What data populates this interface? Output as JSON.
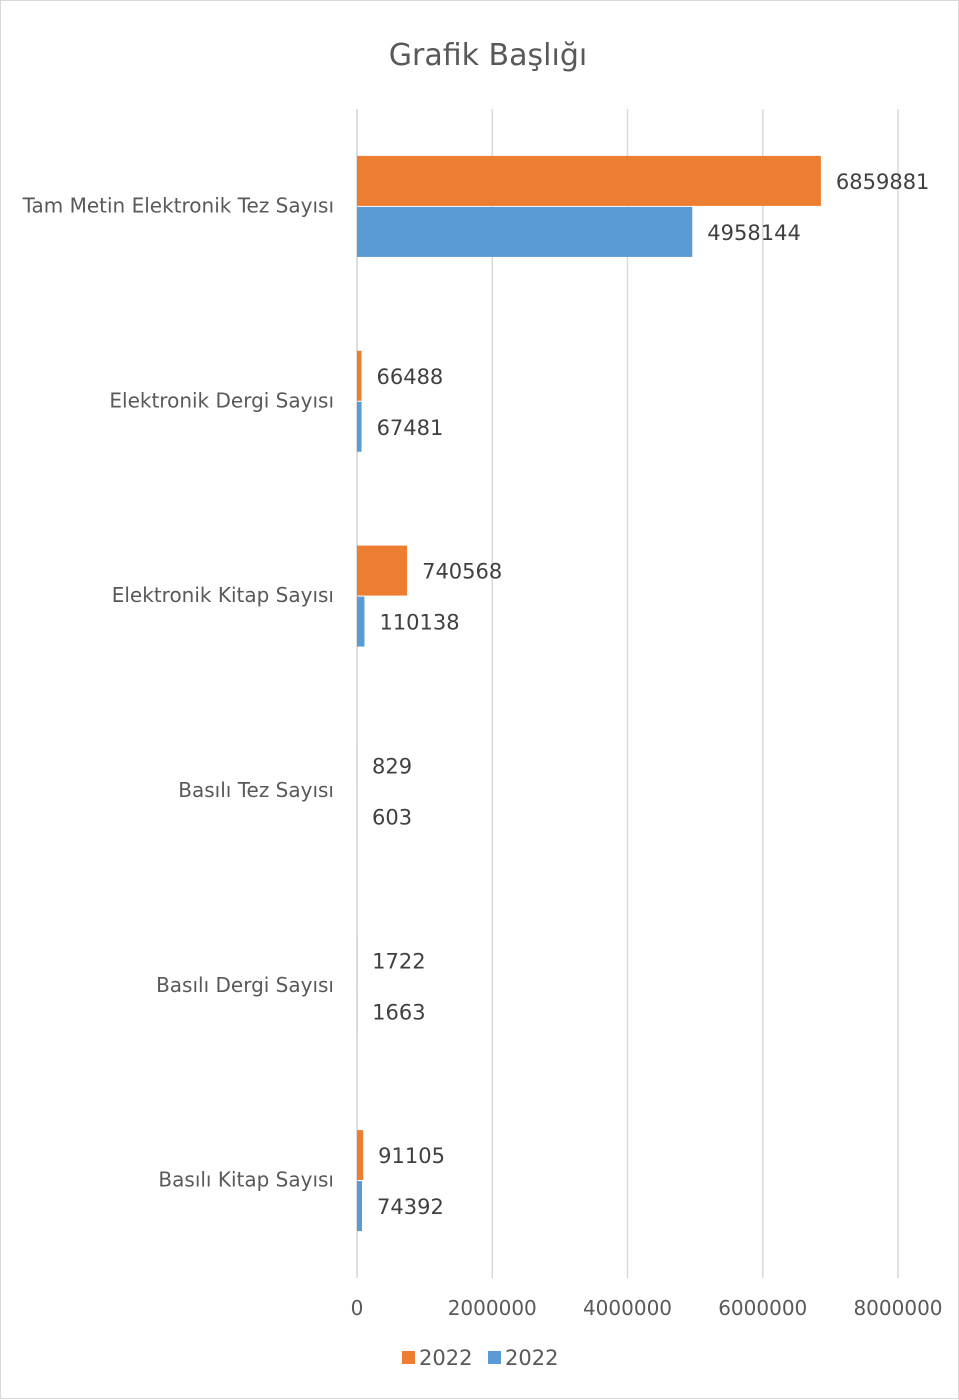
{
  "chart_data": {
    "type": "bar",
    "orientation": "horizontal",
    "title": "Grafik Başlığı",
    "categories": [
      "Tam Metin Elektronik Tez Sayısı",
      "Elektronik Dergi Sayısı",
      "Elektronik Kitap Sayısı",
      "Basılı Tez Sayısı",
      "Basılı Dergi Sayısı",
      "Basılı Kitap Sayısı"
    ],
    "series": [
      {
        "name": "2022",
        "color": "#ED7D31",
        "values": [
          6859881,
          66488,
          740568,
          829,
          1722,
          91105
        ]
      },
      {
        "name": "2022",
        "color": "#5B9BD5",
        "values": [
          4958144,
          67481,
          110138,
          603,
          1663,
          74392
        ]
      }
    ],
    "xlim": [
      0,
      8000000
    ],
    "xticks": [
      "0",
      "2000000",
      "4000000",
      "6000000",
      "8000000"
    ],
    "grid": true,
    "gridline_color": "#d9d9d9",
    "legend_position": "bottom",
    "xlabel": "",
    "ylabel": ""
  }
}
